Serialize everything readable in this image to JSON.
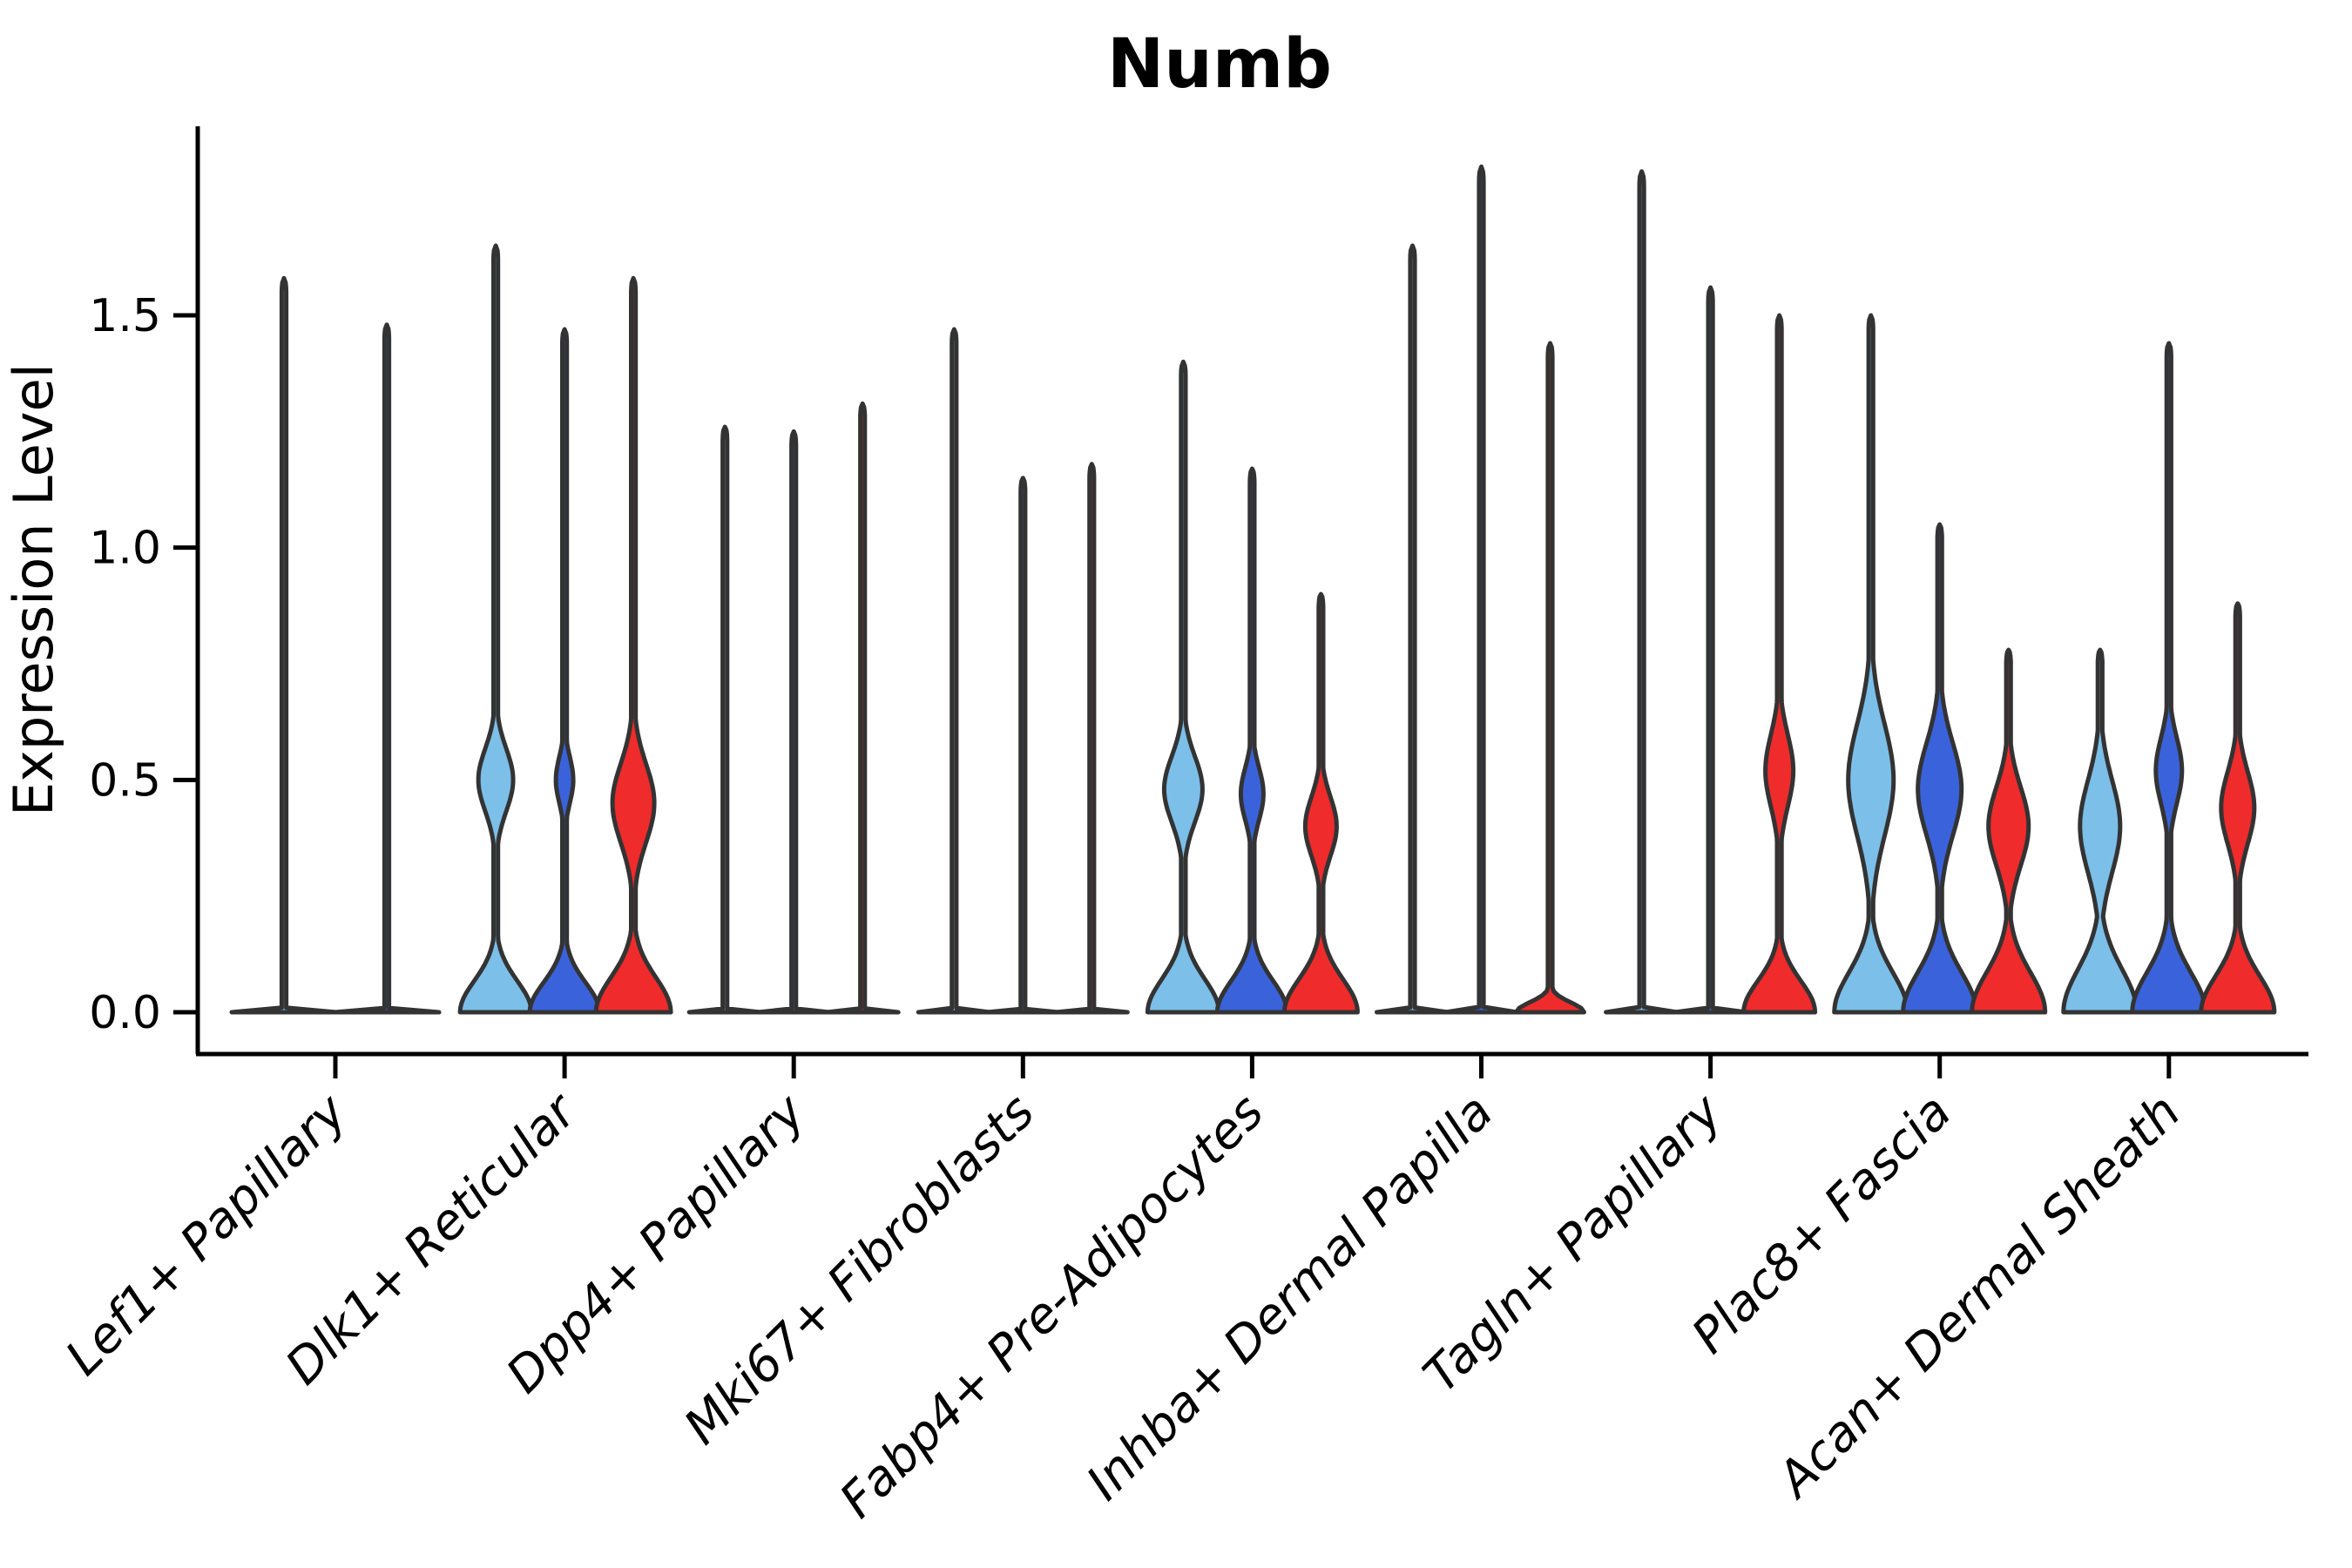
{
  "chart_data": {
    "type": "violin",
    "title": "Numb",
    "ylabel": "Expression Level",
    "xlabel": "",
    "grid": false,
    "legend": "none",
    "yticks_labels": [
      "0.0",
      "0.5",
      "1.0",
      "1.5"
    ],
    "ytick_values": [
      0.0,
      0.5,
      1.0,
      1.5
    ],
    "ylim": [
      -0.09,
      1.9
    ],
    "categories": [
      "Lef1+ Papillary",
      "Dlk1+ Reticular",
      "Dpp4+ Papillary",
      "Mki67+ Fibroblasts",
      "Fabp4+ Pre-Adipocytes",
      "Inhba+ Dermal Papilla",
      "Tagln+ Papillary",
      "Plac8+ Fascia",
      "Acan+ Dermal Sheath"
    ],
    "series_palette": {
      "light_blue": "#7CBFE9",
      "dark_blue": "#3A63DB",
      "red": "#EF2B2B"
    },
    "outline_color": "#333333",
    "axis_color": "#000000",
    "groups": [
      {
        "category": "Lef1+ Papillary",
        "violins": [
          {
            "color": "light_blue",
            "offset": -59,
            "max": 1.58,
            "collapsed": true,
            "base_hw": 60,
            "bulge": null
          },
          {
            "color": "dark_blue",
            "offset": 59,
            "max": 1.48,
            "collapsed": true,
            "base_hw": 60,
            "bulge": null
          }
        ]
      },
      {
        "category": "Dlk1+ Reticular",
        "violins": [
          {
            "color": "light_blue",
            "offset": -79,
            "max": 1.65,
            "collapsed": false,
            "base_hw": 41,
            "base_sigma": 0.095,
            "bulge": {
              "c": 0.5,
              "s": 0.095,
              "hw": 20
            }
          },
          {
            "color": "dark_blue",
            "offset": 0,
            "max": 1.47,
            "collapsed": false,
            "base_hw": 40,
            "base_sigma": 0.09,
            "bulge": {
              "c": 0.5,
              "s": 0.07,
              "hw": 10
            }
          },
          {
            "color": "red",
            "offset": 79,
            "max": 1.58,
            "collapsed": false,
            "base_hw": 43,
            "base_sigma": 0.105,
            "bulge": {
              "c": 0.45,
              "s": 0.12,
              "hw": 24
            }
          }
        ]
      },
      {
        "category": "Dpp4+ Papillary",
        "violins": [
          {
            "color": "light_blue",
            "offset": -79,
            "max": 1.26,
            "collapsed": true,
            "base_hw": 41,
            "bulge": null
          },
          {
            "color": "dark_blue",
            "offset": 0,
            "max": 1.25,
            "collapsed": true,
            "base_hw": 41,
            "bulge": null
          },
          {
            "color": "red",
            "offset": 79,
            "max": 1.31,
            "collapsed": true,
            "base_hw": 41,
            "bulge": null
          }
        ]
      },
      {
        "category": "Mki67+ Fibroblasts",
        "violins": [
          {
            "color": "light_blue",
            "offset": -79,
            "max": 1.47,
            "collapsed": true,
            "base_hw": 41,
            "bulge": null
          },
          {
            "color": "dark_blue",
            "offset": 0,
            "max": 1.15,
            "collapsed": true,
            "base_hw": 41,
            "bulge": null
          },
          {
            "color": "red",
            "offset": 79,
            "max": 1.18,
            "collapsed": true,
            "base_hw": 41,
            "bulge": null
          }
        ]
      },
      {
        "category": "Fabp4+ Pre-Adipocytes",
        "violins": [
          {
            "color": "light_blue",
            "offset": -79,
            "max": 1.4,
            "collapsed": false,
            "base_hw": 41,
            "base_sigma": 0.1,
            "bulge": {
              "c": 0.48,
              "s": 0.1,
              "hw": 22
            }
          },
          {
            "color": "dark_blue",
            "offset": 0,
            "max": 1.17,
            "collapsed": false,
            "base_hw": 40,
            "base_sigma": 0.095,
            "bulge": {
              "c": 0.47,
              "s": 0.08,
              "hw": 13
            }
          },
          {
            "color": "red",
            "offset": 79,
            "max": 0.9,
            "collapsed": false,
            "base_hw": 42,
            "base_sigma": 0.1,
            "bulge": {
              "c": 0.4,
              "s": 0.09,
              "hw": 18
            }
          }
        ]
      },
      {
        "category": "Inhba+ Dermal Papilla",
        "violins": [
          {
            "color": "light_blue",
            "offset": -79,
            "max": 1.65,
            "collapsed": true,
            "base_hw": 41,
            "bulge": null
          },
          {
            "color": "dark_blue",
            "offset": 0,
            "max": 1.82,
            "collapsed": true,
            "base_hw": 41,
            "bulge": null
          },
          {
            "color": "red",
            "offset": 79,
            "max": 1.44,
            "collapsed": false,
            "base_hw": 39,
            "base_sigma": 0.03,
            "bulge": null
          }
        ]
      },
      {
        "category": "Tagln+ Papillary",
        "violins": [
          {
            "color": "light_blue",
            "offset": -79,
            "max": 1.81,
            "collapsed": true,
            "base_hw": 41,
            "bulge": null
          },
          {
            "color": "dark_blue",
            "offset": 0,
            "max": 1.56,
            "collapsed": true,
            "base_hw": 41,
            "bulge": null
          },
          {
            "color": "red",
            "offset": 79,
            "max": 1.5,
            "collapsed": false,
            "base_hw": 41,
            "base_sigma": 0.095,
            "bulge": {
              "c": 0.52,
              "s": 0.11,
              "hw": 16
            }
          }
        ]
      },
      {
        "category": "Plac8+ Fascia",
        "violins": [
          {
            "color": "light_blue",
            "offset": -79,
            "max": 1.5,
            "collapsed": false,
            "base_hw": 42,
            "base_sigma": 0.12,
            "bulge": {
              "c": 0.5,
              "s": 0.17,
              "hw": 26
            }
          },
          {
            "color": "dark_blue",
            "offset": 0,
            "max": 1.05,
            "collapsed": false,
            "base_hw": 42,
            "base_sigma": 0.12,
            "bulge": {
              "c": 0.48,
              "s": 0.14,
              "hw": 25
            }
          },
          {
            "color": "red",
            "offset": 79,
            "max": 0.78,
            "collapsed": false,
            "base_hw": 42,
            "base_sigma": 0.12,
            "bulge": {
              "c": 0.4,
              "s": 0.12,
              "hw": 23
            }
          }
        ]
      },
      {
        "category": "Acan+ Dermal Sheath",
        "violins": [
          {
            "color": "light_blue",
            "offset": -79,
            "max": 0.78,
            "collapsed": false,
            "base_hw": 42,
            "base_sigma": 0.13,
            "bulge": {
              "c": 0.4,
              "s": 0.14,
              "hw": 23
            }
          },
          {
            "color": "dark_blue",
            "offset": 0,
            "max": 1.44,
            "collapsed": false,
            "base_hw": 42,
            "base_sigma": 0.12,
            "bulge": {
              "c": 0.52,
              "s": 0.1,
              "hw": 15
            }
          },
          {
            "color": "red",
            "offset": 79,
            "max": 0.88,
            "collapsed": false,
            "base_hw": 42,
            "base_sigma": 0.11,
            "bulge": {
              "c": 0.44,
              "s": 0.11,
              "hw": 19
            }
          }
        ]
      }
    ]
  }
}
